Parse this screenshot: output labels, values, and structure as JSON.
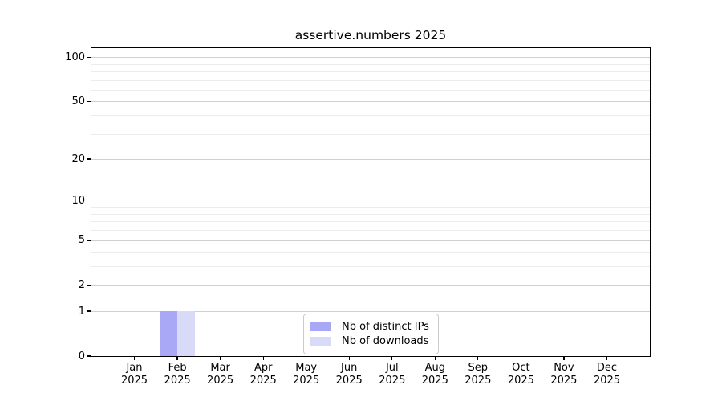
{
  "chart_data": {
    "type": "bar",
    "title": "assertive.numbers 2025",
    "categories": [
      "Jan 2025",
      "Feb 2025",
      "Mar 2025",
      "Apr 2025",
      "May 2025",
      "Jun 2025",
      "Jul 2025",
      "Aug 2025",
      "Sep 2025",
      "Oct 2025",
      "Nov 2025",
      "Dec 2025"
    ],
    "month_labels": [
      "Jan",
      "Feb",
      "Mar",
      "Apr",
      "May",
      "Jun",
      "Jul",
      "Aug",
      "Sep",
      "Oct",
      "Nov",
      "Dec"
    ],
    "year_label": "2025",
    "series": [
      {
        "name": "Nb of distinct IPs",
        "color": "#a8a8f6",
        "values": [
          0,
          1,
          0,
          0,
          0,
          0,
          0,
          0,
          0,
          0,
          0,
          0
        ]
      },
      {
        "name": "Nb of downloads",
        "color": "#d9d9f8",
        "values": [
          0,
          1,
          0,
          0,
          0,
          0,
          0,
          0,
          0,
          0,
          0,
          0
        ]
      }
    ],
    "yscale": "log1p",
    "ylim": [
      0,
      115
    ],
    "major_yticks": [
      0,
      1,
      2,
      5,
      10,
      20,
      50,
      100
    ],
    "minor_yticks": [
      3,
      4,
      6,
      7,
      8,
      9,
      30,
      40,
      60,
      70,
      80,
      90
    ],
    "grid": true,
    "legend_position": "lower center",
    "colors": {
      "major_grid": "#d0d0d0",
      "minor_grid": "#ececec",
      "axis": "#000000",
      "background": "#ffffff"
    }
  }
}
